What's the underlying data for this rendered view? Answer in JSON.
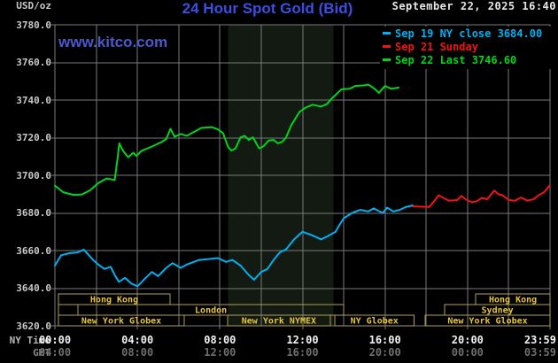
{
  "header": {
    "unit": "USD/oz",
    "title": "24 Hour Spot Gold (Bid)",
    "datetime": "September 22, 2025 16:40"
  },
  "watermark": "www.kitco.com",
  "legend": [
    {
      "label": "Sep 19 NY close 3684.00",
      "color": "#00b0f0"
    },
    {
      "label": "Sep 21 Sunday",
      "color": "#f21414"
    },
    {
      "label": "Sep 22 Last 3746.60",
      "color": "#00d41c"
    }
  ],
  "colors": {
    "background": "#000000",
    "grid": "#7a7a7a",
    "band": "#121a12",
    "session_border": "#b0a050",
    "session_text": "#e7c53a",
    "ny_time_label": "#b9b9b9",
    "gmt_label": "#8a8a8a"
  },
  "chart_data": {
    "type": "line",
    "title": "24 Hour Spot Gold (Bid)",
    "ylabel": "USD/oz",
    "ylim": [
      3620,
      3780
    ],
    "xlim_hours": [
      0,
      24
    ],
    "x_unit": "NY time (hours)",
    "grid": true,
    "legend_position": "top-right",
    "highlight_band_hours": [
      8.4,
      13.5
    ],
    "y_ticks": {
      "labels": [
        "3780.0",
        "3760.0",
        "3740.0",
        "3720.0",
        "3700.0",
        "3680.0",
        "3660.0",
        "3640.0",
        "3620.0"
      ],
      "values": [
        3780,
        3760,
        3740,
        3720,
        3700,
        3680,
        3660,
        3640,
        3620
      ]
    },
    "x_rows": [
      {
        "label": "NY Time",
        "ticks": [
          "00:00",
          "04:00",
          "08:00",
          "12:00",
          "16:00",
          "20:00",
          "23:59"
        ],
        "values": [
          0,
          4,
          8,
          12,
          16,
          20,
          23.983
        ]
      },
      {
        "label": "GMT",
        "ticks": [
          "04:00",
          "08:00",
          "12:00",
          "16:00",
          "20:00",
          "00:00",
          "03:59"
        ],
        "values": [
          0,
          4,
          8,
          12,
          16,
          20,
          23.983
        ]
      }
    ],
    "sessions": [
      {
        "row": 0,
        "start_h": 0.17,
        "end_h": 5.58,
        "label": "Hong Kong"
      },
      {
        "row": 0,
        "start_h": 20.4,
        "end_h": 24.0,
        "label": "Hong Kong"
      },
      {
        "row": 1,
        "start_h": 0.17,
        "end_h": 1.12,
        "label": ""
      },
      {
        "row": 1,
        "start_h": 1.12,
        "end_h": 14.0,
        "label": "London"
      },
      {
        "row": 1,
        "start_h": 18.9,
        "end_h": 24.0,
        "label": "Sydney"
      },
      {
        "row": 2,
        "start_h": 0.17,
        "end_h": 6.27,
        "label": "New York Globex"
      },
      {
        "row": 2,
        "start_h": 8.37,
        "end_h": 13.35,
        "label": "New York NYMEX"
      },
      {
        "row": 2,
        "start_h": 13.57,
        "end_h": 17.4,
        "label": "NY Globex"
      },
      {
        "row": 2,
        "start_h": 17.95,
        "end_h": 24.0,
        "label": "New York Globex"
      }
    ],
    "series": [
      {
        "name": "Sep 19 NY close 3684.00",
        "color": "#00b0f0",
        "points": [
          [
            0,
            3652
          ],
          [
            0.3,
            3657.5
          ],
          [
            0.7,
            3658.6
          ],
          [
            1.1,
            3659
          ],
          [
            1.4,
            3660.5
          ],
          [
            1.85,
            3655
          ],
          [
            2.1,
            3652.6
          ],
          [
            2.4,
            3650.2
          ],
          [
            2.7,
            3651.4
          ],
          [
            2.9,
            3647
          ],
          [
            3.1,
            3643.4
          ],
          [
            3.4,
            3645.5
          ],
          [
            3.7,
            3642.5
          ],
          [
            4.0,
            3641
          ],
          [
            4.2,
            3643.2
          ],
          [
            4.4,
            3645.5
          ],
          [
            4.7,
            3648.6
          ],
          [
            5.0,
            3646.4
          ],
          [
            5.4,
            3650.8
          ],
          [
            5.7,
            3653.3
          ],
          [
            6.1,
            3650.8
          ],
          [
            6.4,
            3652.6
          ],
          [
            7.0,
            3655
          ],
          [
            7.4,
            3655.4
          ],
          [
            7.9,
            3656
          ],
          [
            8.3,
            3654
          ],
          [
            8.6,
            3655
          ],
          [
            9.0,
            3652
          ],
          [
            9.4,
            3647
          ],
          [
            9.65,
            3644.5
          ],
          [
            10.0,
            3648.6
          ],
          [
            10.3,
            3650.2
          ],
          [
            10.6,
            3655
          ],
          [
            10.9,
            3659
          ],
          [
            11.2,
            3660.6
          ],
          [
            11.6,
            3666
          ],
          [
            12.0,
            3670
          ],
          [
            12.45,
            3668.2
          ],
          [
            12.9,
            3666
          ],
          [
            13.2,
            3667.5
          ],
          [
            13.6,
            3670
          ],
          [
            13.8,
            3673.7
          ],
          [
            14.0,
            3677.2
          ],
          [
            14.4,
            3680
          ],
          [
            14.8,
            3681.6
          ],
          [
            15.2,
            3680.8
          ],
          [
            15.45,
            3682.4
          ],
          [
            15.7,
            3681
          ],
          [
            15.9,
            3680
          ],
          [
            16.1,
            3682.8
          ],
          [
            16.4,
            3680.8
          ],
          [
            16.7,
            3681.6
          ],
          [
            17.0,
            3683.1
          ],
          [
            17.35,
            3684
          ]
        ]
      },
      {
        "name": "Sep 21 Sunday",
        "color": "#f21414",
        "points": [
          [
            17.35,
            3683.5
          ],
          [
            18.15,
            3683.2
          ],
          [
            18.4,
            3686.5
          ],
          [
            18.6,
            3689.4
          ],
          [
            18.8,
            3688.2
          ],
          [
            19.1,
            3686.5
          ],
          [
            19.5,
            3686.8
          ],
          [
            19.7,
            3689.1
          ],
          [
            19.9,
            3687.3
          ],
          [
            20.2,
            3685.7
          ],
          [
            20.45,
            3686.2
          ],
          [
            20.7,
            3688
          ],
          [
            20.95,
            3687.3
          ],
          [
            21.3,
            3691.9
          ],
          [
            21.5,
            3689.9
          ],
          [
            21.7,
            3689.4
          ],
          [
            22.0,
            3686.8
          ],
          [
            22.3,
            3686.5
          ],
          [
            22.6,
            3688.2
          ],
          [
            22.9,
            3686.5
          ],
          [
            23.2,
            3687.3
          ],
          [
            23.45,
            3689.4
          ],
          [
            23.7,
            3690.9
          ],
          [
            23.98,
            3694.5
          ]
        ]
      },
      {
        "name": "Sep 22 Last 3746.60",
        "color": "#00d41c",
        "points": [
          [
            0,
            3694.5
          ],
          [
            0.4,
            3691
          ],
          [
            0.9,
            3689.6
          ],
          [
            1.3,
            3689.8
          ],
          [
            1.7,
            3692
          ],
          [
            2.1,
            3695.8
          ],
          [
            2.5,
            3698.3
          ],
          [
            2.9,
            3697.5
          ],
          [
            3.05,
            3710
          ],
          [
            3.12,
            3717
          ],
          [
            3.3,
            3713
          ],
          [
            3.55,
            3709.6
          ],
          [
            3.8,
            3712
          ],
          [
            3.95,
            3710.3
          ],
          [
            4.2,
            3713
          ],
          [
            4.7,
            3715.3
          ],
          [
            5.15,
            3717.6
          ],
          [
            5.4,
            3719.3
          ],
          [
            5.6,
            3724.7
          ],
          [
            5.8,
            3720.5
          ],
          [
            6.1,
            3722
          ],
          [
            6.4,
            3721
          ],
          [
            6.7,
            3722.8
          ],
          [
            7.1,
            3725.2
          ],
          [
            7.6,
            3725.6
          ],
          [
            7.9,
            3724.4
          ],
          [
            8.15,
            3722.4
          ],
          [
            8.4,
            3715
          ],
          [
            8.55,
            3713.2
          ],
          [
            8.75,
            3714.2
          ],
          [
            9.0,
            3720.2
          ],
          [
            9.2,
            3721
          ],
          [
            9.4,
            3718.8
          ],
          [
            9.6,
            3720.2
          ],
          [
            9.9,
            3714.3
          ],
          [
            10.1,
            3715.3
          ],
          [
            10.35,
            3718.4
          ],
          [
            10.6,
            3718.8
          ],
          [
            10.8,
            3717
          ],
          [
            11.0,
            3717.7
          ],
          [
            11.2,
            3720
          ],
          [
            11.45,
            3726.5
          ],
          [
            11.85,
            3733.6
          ],
          [
            12.15,
            3736
          ],
          [
            12.5,
            3737.5
          ],
          [
            12.9,
            3736.5
          ],
          [
            13.2,
            3738
          ],
          [
            13.4,
            3740.6
          ],
          [
            13.9,
            3745.8
          ],
          [
            14.3,
            3746
          ],
          [
            14.55,
            3747.5
          ],
          [
            15.0,
            3747.8
          ],
          [
            15.2,
            3748.2
          ],
          [
            15.5,
            3746
          ],
          [
            15.7,
            3743.8
          ],
          [
            16.0,
            3747.5
          ],
          [
            16.3,
            3746
          ],
          [
            16.66,
            3746.6
          ]
        ]
      }
    ]
  }
}
